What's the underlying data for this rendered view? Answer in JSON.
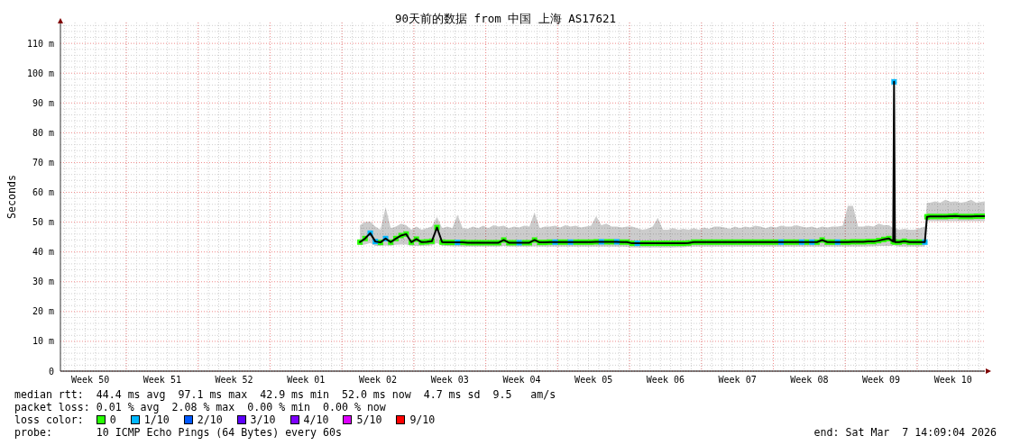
{
  "chart_data": {
    "type": "line",
    "title": "90天前的数据 from 中国 上海 AS17621",
    "ylabel": "Seconds",
    "x": [
      "2026-01-05T18:00",
      "2026-01-06T06:00",
      "2026-01-06T18:00",
      "2026-01-07T06:00",
      "2026-01-07T18:00",
      "2026-01-08T06:00",
      "2026-01-08T18:00",
      "2026-01-09T06:00",
      "2026-01-09T18:00",
      "2026-01-10T06:00",
      "2026-01-10T18:00",
      "2026-01-11T06:00",
      "2026-01-11T18:00",
      "2026-01-12T06:00",
      "2026-01-12T18:00",
      "2026-01-13T06:00",
      "2026-01-13T18:00",
      "2026-01-14T06:00",
      "2026-01-14T18:00",
      "2026-01-15T06:00",
      "2026-01-15T18:00",
      "2026-01-16T06:00",
      "2026-01-16T18:00",
      "2026-01-17T06:00",
      "2026-01-17T18:00",
      "2026-01-18T06:00",
      "2026-01-18T18:00",
      "2026-01-19T06:00",
      "2026-01-19T18:00",
      "2026-01-20T06:00",
      "2026-01-20T18:00",
      "2026-01-21T06:00",
      "2026-01-21T18:00",
      "2026-01-22T06:00",
      "2026-01-22T18:00",
      "2026-01-23T06:00",
      "2026-01-23T18:00",
      "2026-01-24T06:00",
      "2026-01-24T18:00",
      "2026-01-25T06:00",
      "2026-01-25T18:00",
      "2026-01-26T06:00",
      "2026-01-26T18:00",
      "2026-01-27T06:00",
      "2026-01-27T18:00",
      "2026-01-28T06:00",
      "2026-01-28T18:00",
      "2026-01-29T06:00",
      "2026-01-29T18:00",
      "2026-01-30T06:00",
      "2026-01-30T18:00",
      "2026-01-31T06:00",
      "2026-01-31T18:00",
      "2026-02-01T06:00",
      "2026-02-01T18:00",
      "2026-02-02T06:00",
      "2026-02-02T18:00",
      "2026-02-03T06:00",
      "2026-02-03T18:00",
      "2026-02-04T06:00",
      "2026-02-04T18:00",
      "2026-02-05T06:00",
      "2026-02-05T18:00",
      "2026-02-06T06:00",
      "2026-02-06T18:00",
      "2026-02-07T06:00",
      "2026-02-07T18:00",
      "2026-02-08T06:00",
      "2026-02-08T18:00",
      "2026-02-09T06:00",
      "2026-02-09T18:00",
      "2026-02-10T06:00",
      "2026-02-10T18:00",
      "2026-02-11T06:00",
      "2026-02-11T18:00",
      "2026-02-12T06:00",
      "2026-02-12T18:00",
      "2026-02-13T06:00",
      "2026-02-13T18:00",
      "2026-02-14T06:00",
      "2026-02-14T18:00",
      "2026-02-15T06:00",
      "2026-02-15T18:00",
      "2026-02-16T06:00",
      "2026-02-16T18:00",
      "2026-02-17T06:00",
      "2026-02-17T18:00",
      "2026-02-18T06:00",
      "2026-02-18T18:00",
      "2026-02-19T06:00",
      "2026-02-19T18:00",
      "2026-02-20T06:00",
      "2026-02-20T18:00",
      "2026-02-21T06:00",
      "2026-02-21T18:00",
      "2026-02-22T06:00",
      "2026-02-22T18:00",
      "2026-02-23T06:00",
      "2026-02-23T18:00",
      "2026-02-24T06:00",
      "2026-02-24T18:00",
      "2026-02-25T06:00",
      "2026-02-25T18:00",
      "2026-02-26T06:00",
      "2026-02-26T16:00",
      "2026-02-26T18:00",
      "2026-02-26T20:00",
      "2026-02-27T06:00",
      "2026-02-27T18:00",
      "2026-02-28T06:00",
      "2026-02-28T18:00",
      "2026-03-01T06:00",
      "2026-03-01T18:00",
      "2026-03-01T23:00",
      "2026-03-02T06:00",
      "2026-03-02T18:00",
      "2026-03-03T06:00",
      "2026-03-03T18:00",
      "2026-03-04T06:00",
      "2026-03-04T18:00",
      "2026-03-05T06:00",
      "2026-03-05T18:00",
      "2026-03-06T06:00",
      "2026-03-06T18:00",
      "2026-03-07T06:00",
      "2026-03-07T14:00"
    ],
    "series": [
      {
        "color": "#000000",
        "values": [
          43.3,
          44.5,
          46.3,
          43.5,
          43.2,
          44.5,
          43.3,
          44.5,
          45.5,
          46.0,
          43.3,
          44.3,
          43.3,
          43.4,
          43.6,
          48.2,
          43.3,
          43.2,
          43.2,
          43.2,
          43.2,
          43.1,
          43.1,
          43.1,
          43.1,
          43.1,
          43.1,
          43.1,
          44.0,
          43.1,
          43.1,
          43.1,
          43.1,
          43.1,
          44.0,
          43.2,
          43.2,
          43.3,
          43.3,
          43.3,
          43.3,
          43.3,
          43.3,
          43.3,
          43.3,
          43.3,
          43.4,
          43.4,
          43.4,
          43.4,
          43.4,
          43.3,
          43.3,
          42.9,
          42.9,
          42.9,
          42.9,
          42.9,
          42.9,
          42.9,
          42.9,
          42.9,
          42.9,
          42.9,
          43.0,
          43.3,
          43.3,
          43.3,
          43.3,
          43.3,
          43.3,
          43.3,
          43.3,
          43.3,
          43.3,
          43.3,
          43.3,
          43.3,
          43.3,
          43.3,
          43.3,
          43.3,
          43.3,
          43.3,
          43.3,
          43.3,
          43.3,
          43.3,
          43.3,
          43.3,
          44.0,
          43.3,
          43.3,
          43.3,
          43.3,
          43.3,
          43.4,
          43.4,
          43.4,
          43.5,
          43.5,
          43.8,
          44.2,
          44.5,
          43.5,
          97.1,
          43.3,
          43.3,
          43.6,
          43.3,
          43.3,
          43.3,
          43.3,
          51.8,
          51.9,
          51.9,
          51.9,
          51.9,
          52.0,
          52.1,
          51.9,
          51.9,
          51.9,
          52.0,
          52.0,
          52.0
        ],
        "lower": [
          42.3,
          42.5,
          43.0,
          42.0,
          42.0,
          42.2,
          42.0,
          42.4,
          42.5,
          42.5,
          42.0,
          42.0,
          42.0,
          42.1,
          42.2,
          43.0,
          42.0,
          42.0,
          41.9,
          41.9,
          41.8,
          41.8,
          41.8,
          41.8,
          41.8,
          41.8,
          41.8,
          41.8,
          42.0,
          41.8,
          41.8,
          41.8,
          41.8,
          41.8,
          41.9,
          41.8,
          41.8,
          41.8,
          41.8,
          41.8,
          41.8,
          41.8,
          41.8,
          41.8,
          41.8,
          41.8,
          41.8,
          41.8,
          41.8,
          41.8,
          41.8,
          41.8,
          41.7,
          41.5,
          41.5,
          41.5,
          41.5,
          41.5,
          41.5,
          41.5,
          41.5,
          41.5,
          41.6,
          41.6,
          41.7,
          41.8,
          41.8,
          41.8,
          41.8,
          41.8,
          41.8,
          41.8,
          41.8,
          41.8,
          41.8,
          41.8,
          41.8,
          41.8,
          41.8,
          41.8,
          41.8,
          41.8,
          41.8,
          41.8,
          41.8,
          41.8,
          41.8,
          41.8,
          41.8,
          41.8,
          41.8,
          41.8,
          41.8,
          41.8,
          41.8,
          41.8,
          41.8,
          41.8,
          41.8,
          41.9,
          41.9,
          42.0,
          42.0,
          42.0,
          42.0,
          43.0,
          42.0,
          41.8,
          41.8,
          41.8,
          41.8,
          41.8,
          41.8,
          50.3,
          50.3,
          50.3,
          50.3,
          50.3,
          50.3,
          50.3,
          50.3,
          50.3,
          50.3,
          50.3,
          50.3,
          50.3
        ],
        "upper": [
          49.0,
          50.0,
          50.2,
          48.5,
          47.5,
          55.0,
          48.0,
          48.5,
          49.5,
          49.0,
          47.5,
          48.5,
          47.5,
          48.0,
          48.5,
          51.8,
          48.0,
          48.5,
          48.0,
          52.5,
          48.0,
          47.8,
          48.5,
          48.0,
          48.8,
          48.0,
          49.0,
          48.5,
          48.8,
          48.0,
          48.5,
          48.2,
          48.8,
          48.5,
          53.3,
          48.0,
          48.5,
          48.5,
          48.8,
          48.2,
          49.0,
          48.5,
          48.8,
          48.2,
          48.5,
          48.8,
          52.0,
          49.0,
          49.5,
          48.5,
          48.5,
          48.2,
          48.5,
          48.5,
          48.0,
          47.5,
          47.8,
          48.5,
          51.5,
          47.5,
          47.5,
          48.0,
          47.5,
          47.8,
          47.5,
          48.0,
          47.5,
          48.2,
          47.8,
          48.5,
          48.5,
          48.2,
          47.8,
          48.5,
          48.0,
          48.5,
          48.2,
          48.8,
          48.5,
          48.0,
          48.5,
          48.2,
          48.8,
          48.5,
          48.5,
          49.0,
          48.5,
          48.2,
          48.5,
          48.0,
          48.5,
          48.2,
          48.5,
          48.5,
          48.8,
          55.5,
          55.5,
          48.5,
          48.5,
          48.8,
          48.5,
          49.5,
          49.0,
          49.0,
          48.0,
          116.5,
          48.0,
          47.5,
          47.8,
          47.5,
          47.5,
          48.0,
          48.5,
          56.5,
          56.5,
          57.0,
          56.5,
          57.5,
          56.8,
          57.0,
          56.5,
          56.8,
          57.5,
          56.5,
          56.8,
          57.0
        ]
      },
      {
        "type": "scatter",
        "name": "0",
        "color": "#26ff00",
        "marker": "square",
        "values": [
          43.3,
          44.5,
          null,
          null,
          43.2,
          null,
          43.3,
          44.5,
          45.5,
          46.0,
          43.3,
          44.3,
          43.3,
          43.4,
          43.6,
          48.2,
          43.3,
          43.2,
          43.2,
          null,
          43.2,
          43.1,
          43.1,
          43.1,
          43.1,
          43.1,
          43.1,
          43.1,
          44.0,
          43.1,
          43.1,
          null,
          43.1,
          43.1,
          44.0,
          43.2,
          43.2,
          43.3,
          null,
          43.3,
          43.3,
          null,
          43.3,
          43.3,
          43.3,
          43.3,
          43.4,
          null,
          43.4,
          43.4,
          null,
          43.3,
          43.3,
          42.9,
          null,
          42.9,
          42.9,
          42.9,
          42.9,
          42.9,
          42.9,
          42.9,
          42.9,
          42.9,
          43.0,
          43.3,
          43.3,
          43.3,
          43.3,
          43.3,
          43.3,
          43.3,
          43.3,
          43.3,
          43.3,
          43.3,
          43.3,
          43.3,
          43.3,
          43.3,
          43.3,
          43.3,
          null,
          43.3,
          43.3,
          43.3,
          null,
          43.3,
          null,
          43.3,
          44.0,
          43.3,
          43.3,
          null,
          43.3,
          43.3,
          43.4,
          43.4,
          43.4,
          43.5,
          43.5,
          43.8,
          44.2,
          44.5,
          43.5,
          null,
          43.3,
          43.3,
          43.6,
          43.3,
          43.3,
          43.3,
          null,
          51.8,
          51.9,
          51.9,
          51.9,
          51.9,
          52.0,
          52.1,
          51.9,
          51.9,
          51.9,
          52.0,
          52.0,
          52.0
        ]
      },
      {
        "type": "scatter",
        "name": "1/10",
        "color": "#00b8ff",
        "marker": "square",
        "values": [
          null,
          null,
          46.3,
          43.5,
          null,
          44.5,
          null,
          null,
          null,
          null,
          null,
          null,
          null,
          null,
          null,
          null,
          null,
          null,
          null,
          43.2,
          null,
          null,
          null,
          null,
          null,
          null,
          null,
          null,
          null,
          null,
          null,
          43.1,
          null,
          null,
          null,
          null,
          null,
          null,
          43.3,
          null,
          null,
          43.3,
          null,
          null,
          null,
          null,
          null,
          43.4,
          null,
          null,
          43.4,
          null,
          null,
          null,
          42.9,
          null,
          null,
          null,
          null,
          null,
          null,
          null,
          null,
          null,
          null,
          null,
          null,
          null,
          null,
          null,
          null,
          null,
          null,
          null,
          null,
          null,
          null,
          null,
          null,
          null,
          null,
          null,
          43.3,
          null,
          null,
          null,
          43.3,
          null,
          43.3,
          null,
          null,
          null,
          null,
          43.3,
          null,
          null,
          null,
          null,
          null,
          null,
          null,
          null,
          null,
          null,
          null,
          97.1,
          null,
          null,
          null,
          null,
          null,
          null,
          43.3,
          null,
          null,
          null,
          null,
          null,
          null,
          null,
          null,
          null,
          null,
          null,
          null,
          null
        ]
      },
      {
        "type": "scatter",
        "name": "2/10",
        "color": "#0059ff",
        "marker": "square",
        "values": [
          null,
          null,
          null,
          null,
          null,
          null,
          null,
          null,
          null,
          null,
          null,
          null,
          null,
          null,
          null,
          null,
          null,
          null,
          null,
          null,
          null,
          null,
          null,
          null,
          null,
          null,
          null,
          null,
          null,
          null,
          null,
          null,
          null,
          null,
          null,
          null,
          null,
          null,
          null,
          null,
          null,
          null,
          null,
          null,
          null,
          null,
          null,
          null,
          null,
          null,
          null,
          null,
          null,
          null,
          null,
          null,
          null,
          null,
          null,
          null,
          null,
          null,
          null,
          null,
          null,
          null,
          null,
          null,
          null,
          null,
          null,
          null,
          null,
          null,
          null,
          null,
          null,
          null,
          null,
          null,
          null,
          null,
          null,
          null,
          null,
          null,
          null,
          null,
          null,
          null,
          null,
          null,
          null,
          null,
          null,
          null,
          null,
          null,
          null,
          null,
          null,
          null,
          null,
          null,
          null,
          null,
          null,
          null,
          null,
          null,
          null,
          null,
          null,
          null,
          null,
          null,
          null,
          null,
          null,
          null,
          null,
          null,
          null,
          null,
          null,
          null
        ]
      },
      {
        "type": "scatter",
        "name": "3/10",
        "color": "#5e00ff",
        "marker": "square",
        "values": [
          null,
          null,
          null,
          null,
          null,
          null,
          null,
          null,
          null,
          null,
          null,
          null,
          null,
          null,
          null,
          null,
          null,
          null,
          null,
          null,
          null,
          null,
          null,
          null,
          null,
          null,
          null,
          null,
          null,
          null,
          null,
          null,
          null,
          null,
          null,
          null,
          null,
          null,
          null,
          null,
          null,
          null,
          null,
          null,
          null,
          null,
          null,
          null,
          null,
          null,
          null,
          null,
          null,
          null,
          null,
          null,
          null,
          null,
          null,
          null,
          null,
          null,
          null,
          null,
          null,
          null,
          null,
          null,
          null,
          null,
          null,
          null,
          null,
          null,
          null,
          null,
          null,
          null,
          null,
          null,
          null,
          null,
          null,
          null,
          null,
          null,
          null,
          null,
          null,
          null,
          null,
          null,
          null,
          null,
          null,
          null,
          null,
          null,
          null,
          null,
          null,
          null,
          null,
          null,
          null,
          null,
          null,
          null,
          null,
          null,
          null,
          null,
          null,
          null,
          null,
          null,
          null,
          null,
          null,
          null,
          null,
          null,
          null,
          null,
          null,
          null
        ]
      },
      {
        "type": "scatter",
        "name": "4/10",
        "color": "#7e00ff",
        "marker": "square",
        "values": [
          null,
          null,
          null,
          null,
          null,
          null,
          null,
          null,
          null,
          null,
          null,
          null,
          null,
          null,
          null,
          null,
          null,
          null,
          null,
          null,
          null,
          null,
          null,
          null,
          null,
          null,
          null,
          null,
          null,
          null,
          null,
          null,
          null,
          null,
          null,
          null,
          null,
          null,
          null,
          null,
          null,
          null,
          null,
          null,
          null,
          null,
          null,
          null,
          null,
          null,
          null,
          null,
          null,
          null,
          null,
          null,
          null,
          null,
          null,
          null,
          null,
          null,
          null,
          null,
          null,
          null,
          null,
          null,
          null,
          null,
          null,
          null,
          null,
          null,
          null,
          null,
          null,
          null,
          null,
          null,
          null,
          null,
          null,
          null,
          null,
          null,
          null,
          null,
          null,
          null,
          null,
          null,
          null,
          null,
          null,
          null,
          null,
          null,
          null,
          null,
          null,
          null,
          null,
          null,
          null,
          null,
          null,
          null,
          null,
          null,
          null,
          null,
          null,
          null,
          null,
          null,
          null,
          null,
          null,
          null,
          null,
          null,
          null,
          null,
          null,
          null
        ]
      },
      {
        "type": "scatter",
        "name": "5/10",
        "color": "#dd00ff",
        "marker": "square",
        "values": [
          null,
          null,
          null,
          null,
          null,
          null,
          null,
          null,
          null,
          null,
          null,
          null,
          null,
          null,
          null,
          null,
          null,
          null,
          null,
          null,
          null,
          null,
          null,
          null,
          null,
          null,
          null,
          null,
          null,
          null,
          null,
          null,
          null,
          null,
          null,
          null,
          null,
          null,
          null,
          null,
          null,
          null,
          null,
          null,
          null,
          null,
          null,
          null,
          null,
          null,
          null,
          null,
          null,
          null,
          null,
          null,
          null,
          null,
          null,
          null,
          null,
          null,
          null,
          null,
          null,
          null,
          null,
          null,
          null,
          null,
          null,
          null,
          null,
          null,
          null,
          null,
          null,
          null,
          null,
          null,
          null,
          null,
          null,
          null,
          null,
          null,
          null,
          null,
          null,
          null,
          null,
          null,
          null,
          null,
          null,
          null,
          null,
          null,
          null,
          null,
          null,
          null,
          null,
          null,
          null,
          null,
          null,
          null,
          null,
          null,
          null,
          null,
          null,
          null,
          null,
          null,
          null,
          null,
          null,
          null,
          null,
          null,
          null,
          null,
          null,
          null
        ]
      },
      {
        "type": "scatter",
        "name": "9/10",
        "color": "#ff0000",
        "marker": "square",
        "values": [
          null,
          null,
          null,
          null,
          null,
          null,
          null,
          null,
          null,
          null,
          null,
          null,
          null,
          null,
          null,
          null,
          null,
          null,
          null,
          null,
          null,
          null,
          null,
          null,
          null,
          null,
          null,
          null,
          null,
          null,
          null,
          null,
          null,
          null,
          null,
          null,
          null,
          null,
          null,
          null,
          null,
          null,
          null,
          null,
          null,
          null,
          null,
          null,
          null,
          null,
          null,
          null,
          null,
          null,
          null,
          null,
          null,
          null,
          null,
          null,
          null,
          null,
          null,
          null,
          null,
          null,
          null,
          null,
          null,
          null,
          null,
          null,
          null,
          null,
          null,
          null,
          null,
          null,
          null,
          null,
          null,
          null,
          null,
          null,
          null,
          null,
          null,
          null,
          null,
          null,
          null,
          null,
          null,
          null,
          null,
          null,
          null,
          null,
          null,
          null,
          null,
          null,
          null,
          null,
          null,
          null,
          null,
          null,
          null,
          null,
          null,
          null,
          null,
          null,
          null,
          null,
          null,
          null,
          null,
          null,
          null,
          null,
          null,
          null,
          null,
          null
        ]
      }
    ],
    "xlim": [
      "2025-12-07T14:09",
      "2026-03-07T14:09"
    ],
    "xticks": [
      {
        "value": "2025-12-10T12:00",
        "label": "Week 50"
      },
      {
        "value": "2025-12-14",
        "label": null
      },
      {
        "value": "2025-12-17T12:00",
        "label": "Week 51"
      },
      {
        "value": "2025-12-21",
        "label": null
      },
      {
        "value": "2025-12-24T12:00",
        "label": "Week 52"
      },
      {
        "value": "2025-12-28",
        "label": null
      },
      {
        "value": "2025-12-31T12:00",
        "label": "Week 01"
      },
      {
        "value": "2026-01-04",
        "label": null
      },
      {
        "value": "2026-01-07T12:00",
        "label": "Week 02"
      },
      {
        "value": "2026-01-11",
        "label": null
      },
      {
        "value": "2026-01-14T12:00",
        "label": "Week 03"
      },
      {
        "value": "2026-01-18",
        "label": null
      },
      {
        "value": "2026-01-21T12:00",
        "label": "Week 04"
      },
      {
        "value": "2026-01-25",
        "label": null
      },
      {
        "value": "2026-01-28T12:00",
        "label": "Week 05"
      },
      {
        "value": "2026-02-01",
        "label": null
      },
      {
        "value": "2026-02-04T12:00",
        "label": "Week 06"
      },
      {
        "value": "2026-02-08",
        "label": null
      },
      {
        "value": "2026-02-11T12:00",
        "label": "Week 07"
      },
      {
        "value": "2026-02-15",
        "label": null
      },
      {
        "value": "2026-02-18T12:00",
        "label": "Week 08"
      },
      {
        "value": "2026-02-22",
        "label": null
      },
      {
        "value": "2026-02-25T12:00",
        "label": "Week 09"
      },
      {
        "value": "2026-03-01",
        "label": null
      },
      {
        "value": "2026-03-04T12:00",
        "label": "Week 10"
      }
    ],
    "ylim": [
      0,
      117
    ],
    "yticks": [
      0,
      {
        "value": 10,
        "label": "10 m"
      },
      {
        "value": 20,
        "label": "20 m"
      },
      {
        "value": 30,
        "label": "30 m"
      },
      {
        "value": 40,
        "label": "40 m"
      },
      {
        "value": 50,
        "label": "50 m"
      },
      {
        "value": 60,
        "label": "60 m"
      },
      {
        "value": 70,
        "label": "70 m"
      },
      {
        "value": 80,
        "label": "80 m"
      },
      {
        "value": 90,
        "label": "90 m"
      },
      {
        "value": 100,
        "label": "100 m"
      },
      {
        "value": 110,
        "label": "110 m"
      }
    ],
    "grid": true,
    "legend": "bottom",
    "legend_title": "loss color:",
    "annotations": [
      "median rtt:  44.4 ms avg  97.1 ms max  42.9 ms min  52.0 ms now  4.7 ms sd  9.5   am/s",
      "packet loss: 0.01 % avg  2.08 % max  0.00 % min  0.00 % now",
      "probe:       10 ICMP Echo Pings (64 Bytes) every 60s",
      "end: Sat Mar  7 14:09:04 2026"
    ]
  }
}
